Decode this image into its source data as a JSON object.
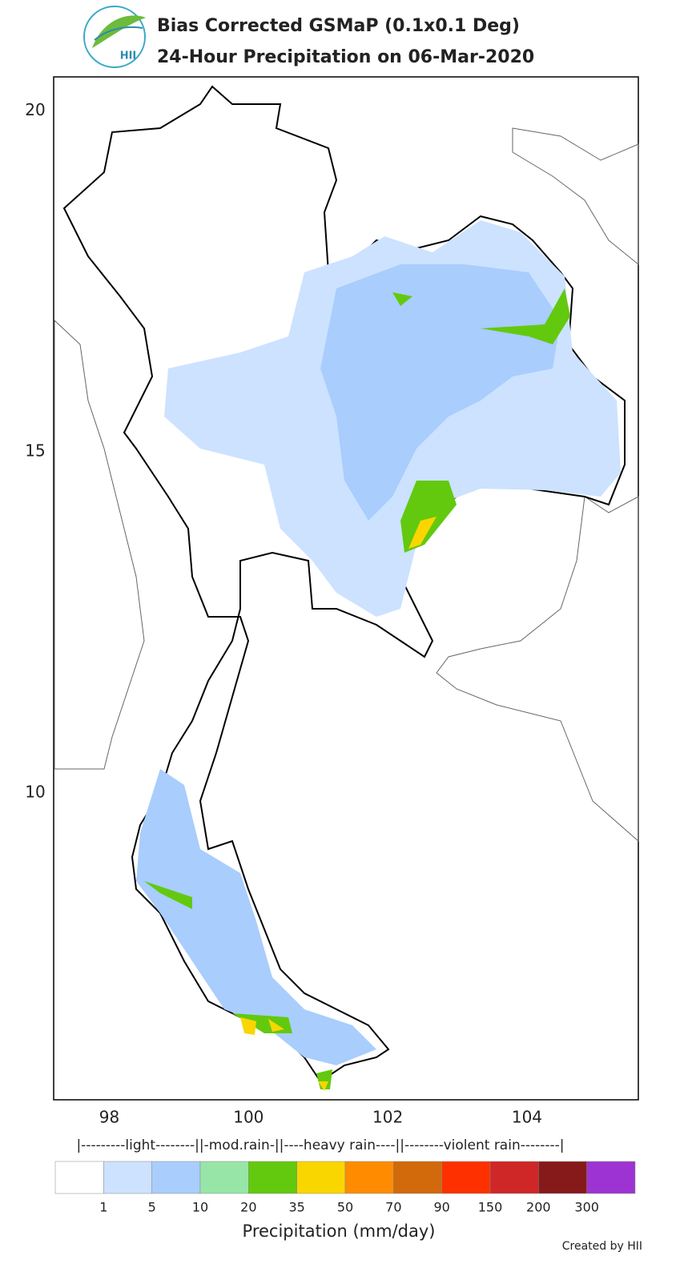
{
  "chart_data": {
    "type": "map",
    "title": "Bias Corrected GSMaP (0.1x0.1 Deg)",
    "subtitle": "24-Hour Precipitation on 06-Mar-2020",
    "logo_text": "HII",
    "xlim": [
      97.2,
      105.6
    ],
    "ylim": [
      5.5,
      20.5
    ],
    "xticks": [
      98,
      100,
      102,
      104
    ],
    "yticks": [
      10,
      15,
      20
    ],
    "colorbar": {
      "categories_label": "|---------light--------||-mod.rain-||----heavy rain----||--------violent rain--------|",
      "colors": [
        "#ffffff",
        "#cce2ff",
        "#a9cdfc",
        "#98e5a8",
        "#63c90f",
        "#fad600",
        "#ff8c00",
        "#d2690a",
        "#ff3000",
        "#cf2627",
        "#861a1a",
        "#9e33d3"
      ],
      "ticks": [
        1,
        5,
        10,
        20,
        35,
        50,
        70,
        90,
        150,
        200,
        300
      ],
      "label": "Precipitation (mm/day)"
    },
    "credit": "Created by HII"
  }
}
